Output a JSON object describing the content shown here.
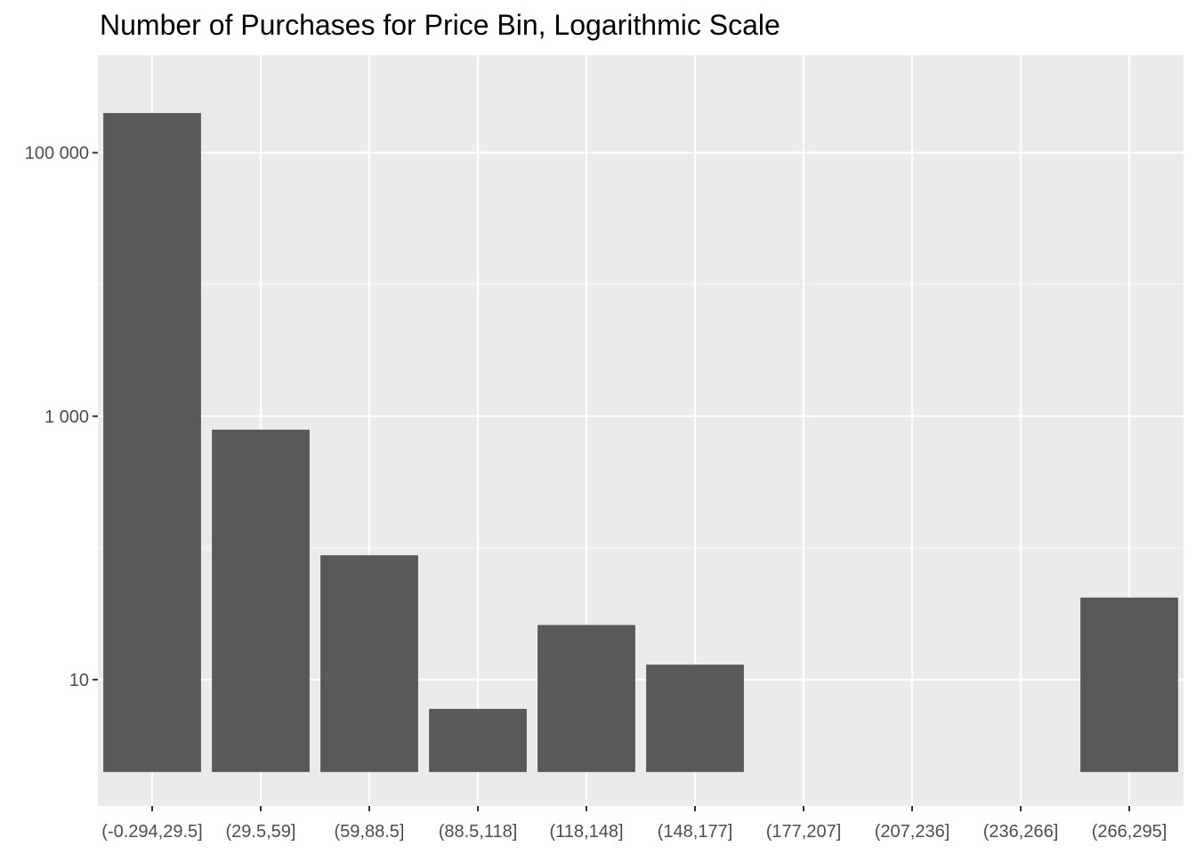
{
  "chart_data": {
    "type": "bar",
    "title": "Number of Purchases for Price Bin, Logarithmic Scale",
    "xlabel": "",
    "ylabel": "",
    "y_scale": "log10",
    "ylim": [
      1.1,
      550000
    ],
    "y_ticks": [
      10,
      1000,
      100000
    ],
    "y_tick_labels": [
      "10",
      "1 000",
      "100 000"
    ],
    "categories": [
      "(-0.294,29.5]",
      "(29.5,59]",
      "(59,88.5]",
      "(88.5,118]",
      "(118,148]",
      "(148,177]",
      "(177,207]",
      "(207,236]",
      "(236,266]",
      "(266,295]"
    ],
    "values": [
      200000,
      790,
      88,
      6,
      26,
      13,
      null,
      null,
      null,
      42
    ],
    "grid": true,
    "legend": "none",
    "colors": {
      "panel_background": "#ebebeb",
      "grid_major": "#ffffff",
      "grid_minor": "#f5f5f5",
      "bar_fill": "#595959",
      "tick_label": "#4d4d4d",
      "tick_mark": "#333333"
    }
  }
}
